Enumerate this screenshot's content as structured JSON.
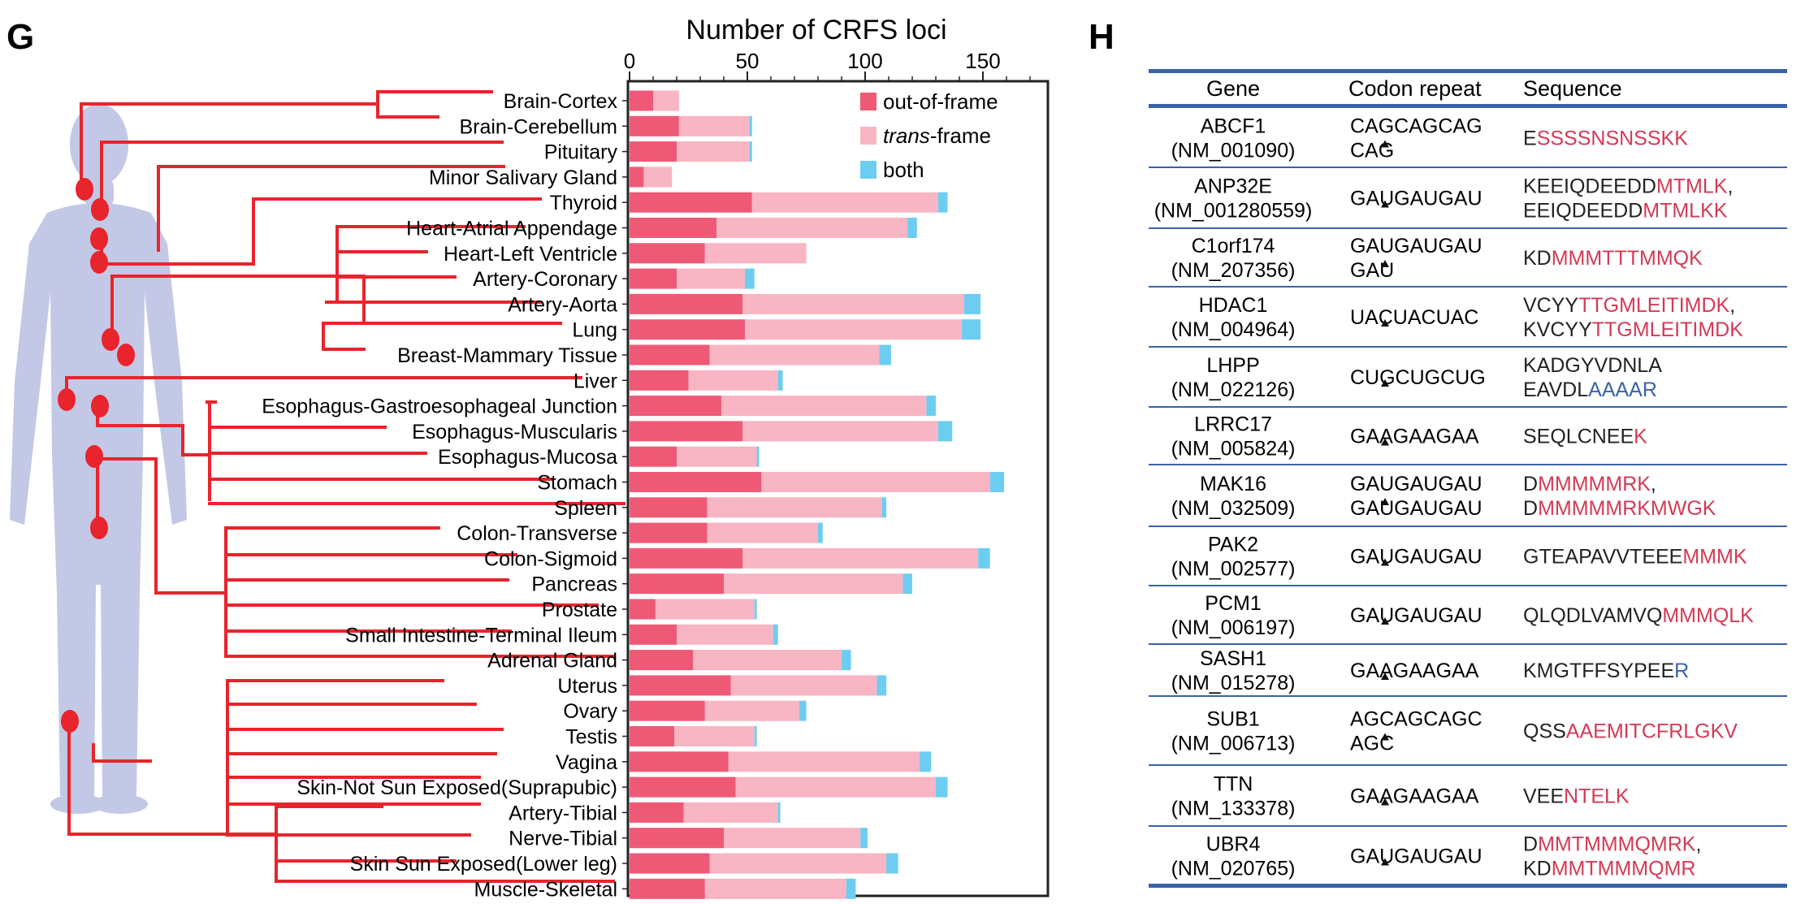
{
  "panel_g": {
    "letter": "G"
  },
  "panel_h": {
    "letter": "H"
  },
  "chart_data": {
    "type": "bar",
    "stacked": true,
    "orientation": "horizontal",
    "title": "Number of CRFS loci",
    "xlim": [
      0,
      180
    ],
    "xticks": [
      "0",
      "50",
      "100",
      "150"
    ],
    "xtick_values": [
      0,
      50,
      100,
      150
    ],
    "legend_position": "top-right",
    "categories": [
      "Brain-Cortex",
      "Brain-Cerebellum",
      "Pituitary",
      "Minor Salivary Gland",
      "Thyroid",
      "Heart-Atrial Appendage",
      "Heart-Left Ventricle",
      "Artery-Coronary",
      "Artery-Aorta",
      "Lung",
      "Breast-Mammary Tissue",
      "Liver",
      "Esophagus-Gastroesophageal Junction",
      "Esophagus-Muscularis",
      "Esophagus-Mucosa",
      "Stomach",
      "Spleen",
      "Colon-Transverse",
      "Colon-Sigmoid",
      "Pancreas",
      "Prostate",
      "Small Intestine-Terminal Ileum",
      "Adrenal Gland",
      "Uterus",
      "Ovary",
      "Testis",
      "Vagina",
      "Skin-Not Sun Exposed(Suprapubic)",
      "Artery-Tibial",
      "Nerve-Tibial",
      "Skin Sun Exposed(Lower leg)",
      "Muscle-Skeletal"
    ],
    "series": [
      {
        "name": "out-of-frame",
        "color": "#ee5a75",
        "values": [
          10,
          21,
          20,
          6,
          52,
          37,
          32,
          20,
          48,
          49,
          34,
          25,
          39,
          48,
          20,
          56,
          33,
          33,
          48,
          40,
          11,
          20,
          27,
          43,
          32,
          19,
          42,
          45,
          23,
          40,
          34,
          32
        ]
      },
      {
        "name": "trans-frame",
        "color": "#f8b5c3",
        "values": [
          11,
          30,
          31,
          12,
          79,
          81,
          43,
          29,
          94,
          92,
          72,
          38,
          87,
          83,
          34,
          97,
          74,
          47,
          100,
          76,
          42,
          41,
          63,
          62,
          40,
          34,
          81,
          85,
          40,
          58,
          75,
          60
        ]
      },
      {
        "name": "both",
        "color": "#6dcdf1",
        "values": [
          0,
          1,
          1,
          0,
          4,
          4,
          0,
          4,
          7,
          8,
          5,
          2,
          4,
          6,
          1,
          6,
          2,
          2,
          5,
          4,
          1,
          2,
          4,
          4,
          3,
          1,
          5,
          5,
          1,
          3,
          5,
          4
        ]
      }
    ],
    "legend": [
      {
        "label_pre": "",
        "label_em": "",
        "label_post": "out-of-frame",
        "color": "#ee5a75"
      },
      {
        "label_pre": "",
        "label_em": "trans",
        "label_post": "-frame",
        "color": "#f8b5c3"
      },
      {
        "label_pre": "",
        "label_em": "",
        "label_post": "both",
        "color": "#6dcdf1"
      }
    ]
  },
  "table": {
    "headers": [
      "Gene",
      "Codon repeat",
      "Sequence"
    ],
    "black_color": "#222222",
    "red_color": "#d33a55",
    "blue_color": "#3a62a8",
    "rule_color": "#3a62a8",
    "rows": [
      {
        "gene": [
          "ABCF1",
          "(NM_001090)"
        ],
        "codon": [
          "CAGCAGCAG",
          "CAG"
        ],
        "seq": [
          [
            [
              "E",
              "k"
            ],
            [
              "SSSSNSNSSKK",
              "r"
            ]
          ]
        ]
      },
      {
        "gene": [
          "ANP32E",
          "(NM_001280559)"
        ],
        "codon": [
          "GAUGAUGAU"
        ],
        "seq": [
          [
            [
              "KEEIQDEEDD",
              "k"
            ],
            [
              "MTMLK",
              "r"
            ],
            [
              ",",
              "k"
            ]
          ],
          [
            [
              "EEIQDEEDD",
              "k"
            ],
            [
              "MTMLKK",
              "r"
            ]
          ]
        ]
      },
      {
        "gene": [
          "C1orf174",
          "(NM_207356)"
        ],
        "codon": [
          "GAUGAUGAU",
          "GAU"
        ],
        "seq": [
          [
            [
              "KD",
              "k"
            ],
            [
              "MMMTTTMMQK",
              "r"
            ]
          ]
        ]
      },
      {
        "gene": [
          "HDAC1",
          "(NM_004964)"
        ],
        "codon": [
          "UACUACUAC"
        ],
        "seq": [
          [
            [
              "VCYY",
              "k"
            ],
            [
              "TTGMLEITIMDK",
              "r"
            ],
            [
              ",",
              "k"
            ]
          ],
          [
            [
              "KVCYY",
              "k"
            ],
            [
              "TTGMLEITIMDK",
              "r"
            ]
          ]
        ]
      },
      {
        "gene": [
          "LHPP",
          "(NM_022126)"
        ],
        "codon": [
          "CUGCUGCUG"
        ],
        "seq": [
          [
            [
              "KADGYVDNLA",
              "k"
            ]
          ],
          [
            [
              "EAVDL",
              "k"
            ],
            [
              "AAAAR",
              "b"
            ]
          ]
        ]
      },
      {
        "gene": [
          "LRRC17",
          "(NM_005824)"
        ],
        "codon": [
          "GAAGAAGAA"
        ],
        "seq": [
          [
            [
              "SEQLCNEE",
              "k"
            ],
            [
              "K",
              "r"
            ]
          ]
        ]
      },
      {
        "gene": [
          "MAK16",
          "(NM_032509)"
        ],
        "codon": [
          "GAUGAUGAU",
          "GAUGAUGAU"
        ],
        "seq": [
          [
            [
              "D",
              "k"
            ],
            [
              "MMMMMRK",
              "r"
            ],
            [
              ",",
              "k"
            ]
          ],
          [
            [
              "D",
              "k"
            ],
            [
              "MMMMMRKMWGK",
              "r"
            ]
          ]
        ]
      },
      {
        "gene": [
          "PAK2",
          "(NM_002577)"
        ],
        "codon": [
          "GAUGAUGAU"
        ],
        "seq": [
          [
            [
              "GTEAPAVVTEEE",
              "k"
            ],
            [
              "MMMK",
              "r"
            ]
          ]
        ]
      },
      {
        "gene": [
          "PCM1",
          "(NM_006197)"
        ],
        "codon": [
          "GAUGAUGAU"
        ],
        "seq": [
          [
            [
              "QLQDLVAMVQ",
              "k"
            ],
            [
              "MMMQLK",
              "r"
            ]
          ]
        ]
      },
      {
        "gene": [
          "SASH1",
          "(NM_015278)"
        ],
        "codon": [
          "GAAGAAGAA"
        ],
        "seq": [
          [
            [
              "KMGTFFSYPEE",
              "k"
            ],
            [
              "R",
              "b"
            ]
          ]
        ]
      },
      {
        "gene": [
          "SUB1",
          "(NM_006713)"
        ],
        "codon": [
          "AGCAGCAGC",
          "AGC"
        ],
        "seq": [
          [
            [
              "QSS",
              "k"
            ],
            [
              "AAEMITCFRLGKV",
              "r"
            ]
          ]
        ]
      },
      {
        "gene": [
          "TTN",
          "(NM_133378)"
        ],
        "codon": [
          "GAAGAAGAA"
        ],
        "seq": [
          [
            [
              "VEE",
              "k"
            ],
            [
              "NTELK",
              "r"
            ]
          ]
        ]
      },
      {
        "gene": [
          "UBR4",
          "(NM_020765)"
        ],
        "codon": [
          "GAUGAUGAU"
        ],
        "seq": [
          [
            [
              "D",
              "k"
            ],
            [
              "MMTMMMQMRK",
              "r"
            ],
            [
              ",",
              "k"
            ]
          ],
          [
            [
              "KD",
              "k"
            ],
            [
              "MMTMMMQMR",
              "r"
            ]
          ]
        ]
      }
    ]
  }
}
